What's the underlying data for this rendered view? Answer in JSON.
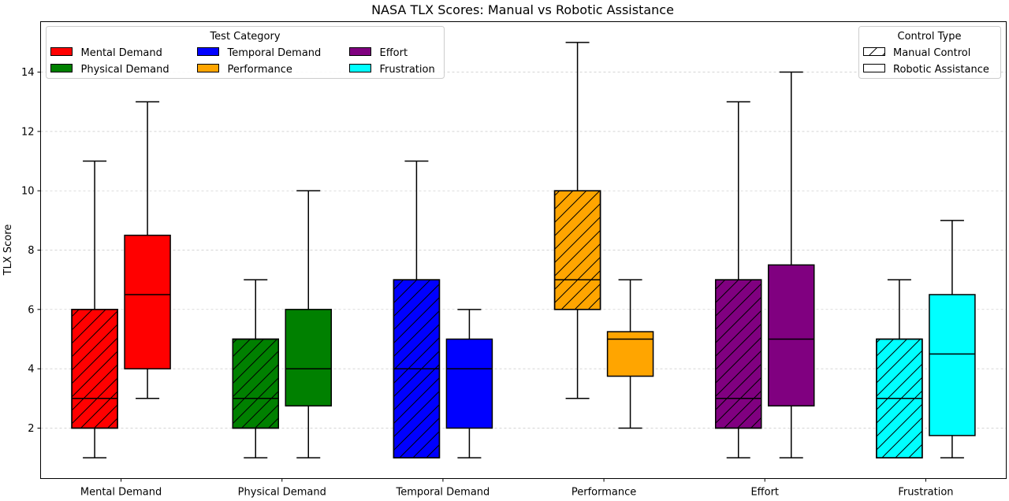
{
  "chart_data": {
    "type": "boxplot",
    "title": "NASA TLX Scores: Manual vs Robotic Assistance",
    "xlabel": "",
    "ylabel": "TLX Score",
    "ylim": [
      0.3,
      15.7
    ],
    "yticks": [
      2,
      4,
      6,
      8,
      10,
      12,
      14
    ],
    "grid": "y-dashed",
    "categories": [
      "Mental Demand",
      "Physical Demand",
      "Temporal Demand",
      "Performance",
      "Effort",
      "Frustration"
    ],
    "colors": [
      "#ff0000",
      "#008000",
      "#0000ff",
      "#ffa500",
      "#800080",
      "#00ffff"
    ],
    "series": [
      {
        "name": "Manual Control",
        "hatch": true,
        "boxes": [
          {
            "whislo": 1,
            "q1": 2,
            "med": 3,
            "q3": 6,
            "whishi": 11
          },
          {
            "whislo": 1,
            "q1": 2,
            "med": 3,
            "q3": 5,
            "whishi": 7
          },
          {
            "whislo": 1,
            "q1": 1,
            "med": 4,
            "q3": 7,
            "whishi": 11
          },
          {
            "whislo": 3,
            "q1": 6,
            "med": 7,
            "q3": 10,
            "whishi": 15
          },
          {
            "whislo": 1,
            "q1": 2,
            "med": 3,
            "q3": 7,
            "whishi": 13
          },
          {
            "whislo": 1,
            "q1": 1,
            "med": 3,
            "q3": 5,
            "whishi": 7
          }
        ]
      },
      {
        "name": "Robotic Assistance",
        "hatch": false,
        "boxes": [
          {
            "whislo": 3,
            "q1": 4,
            "med": 6.5,
            "q3": 8.5,
            "whishi": 13
          },
          {
            "whislo": 1,
            "q1": 2.75,
            "med": 4,
            "q3": 6,
            "whishi": 10
          },
          {
            "whislo": 1,
            "q1": 2,
            "med": 4,
            "q3": 5,
            "whishi": 6
          },
          {
            "whislo": 2,
            "q1": 3.75,
            "med": 5,
            "q3": 5.25,
            "whishi": 7
          },
          {
            "whislo": 1,
            "q1": 2.75,
            "med": 5,
            "q3": 7.5,
            "whishi": 14
          },
          {
            "whislo": 1,
            "q1": 1.75,
            "med": 4.5,
            "q3": 6.5,
            "whishi": 9
          }
        ]
      }
    ],
    "legend_category": {
      "title": "Test Category",
      "placement": "top-left",
      "entries": [
        "Mental Demand",
        "Physical Demand",
        "Temporal Demand",
        "Performance",
        "Effort",
        "Frustration"
      ]
    },
    "legend_control": {
      "title": "Control Type",
      "placement": "top-right",
      "entries": [
        "Manual Control",
        "Robotic Assistance"
      ]
    }
  }
}
